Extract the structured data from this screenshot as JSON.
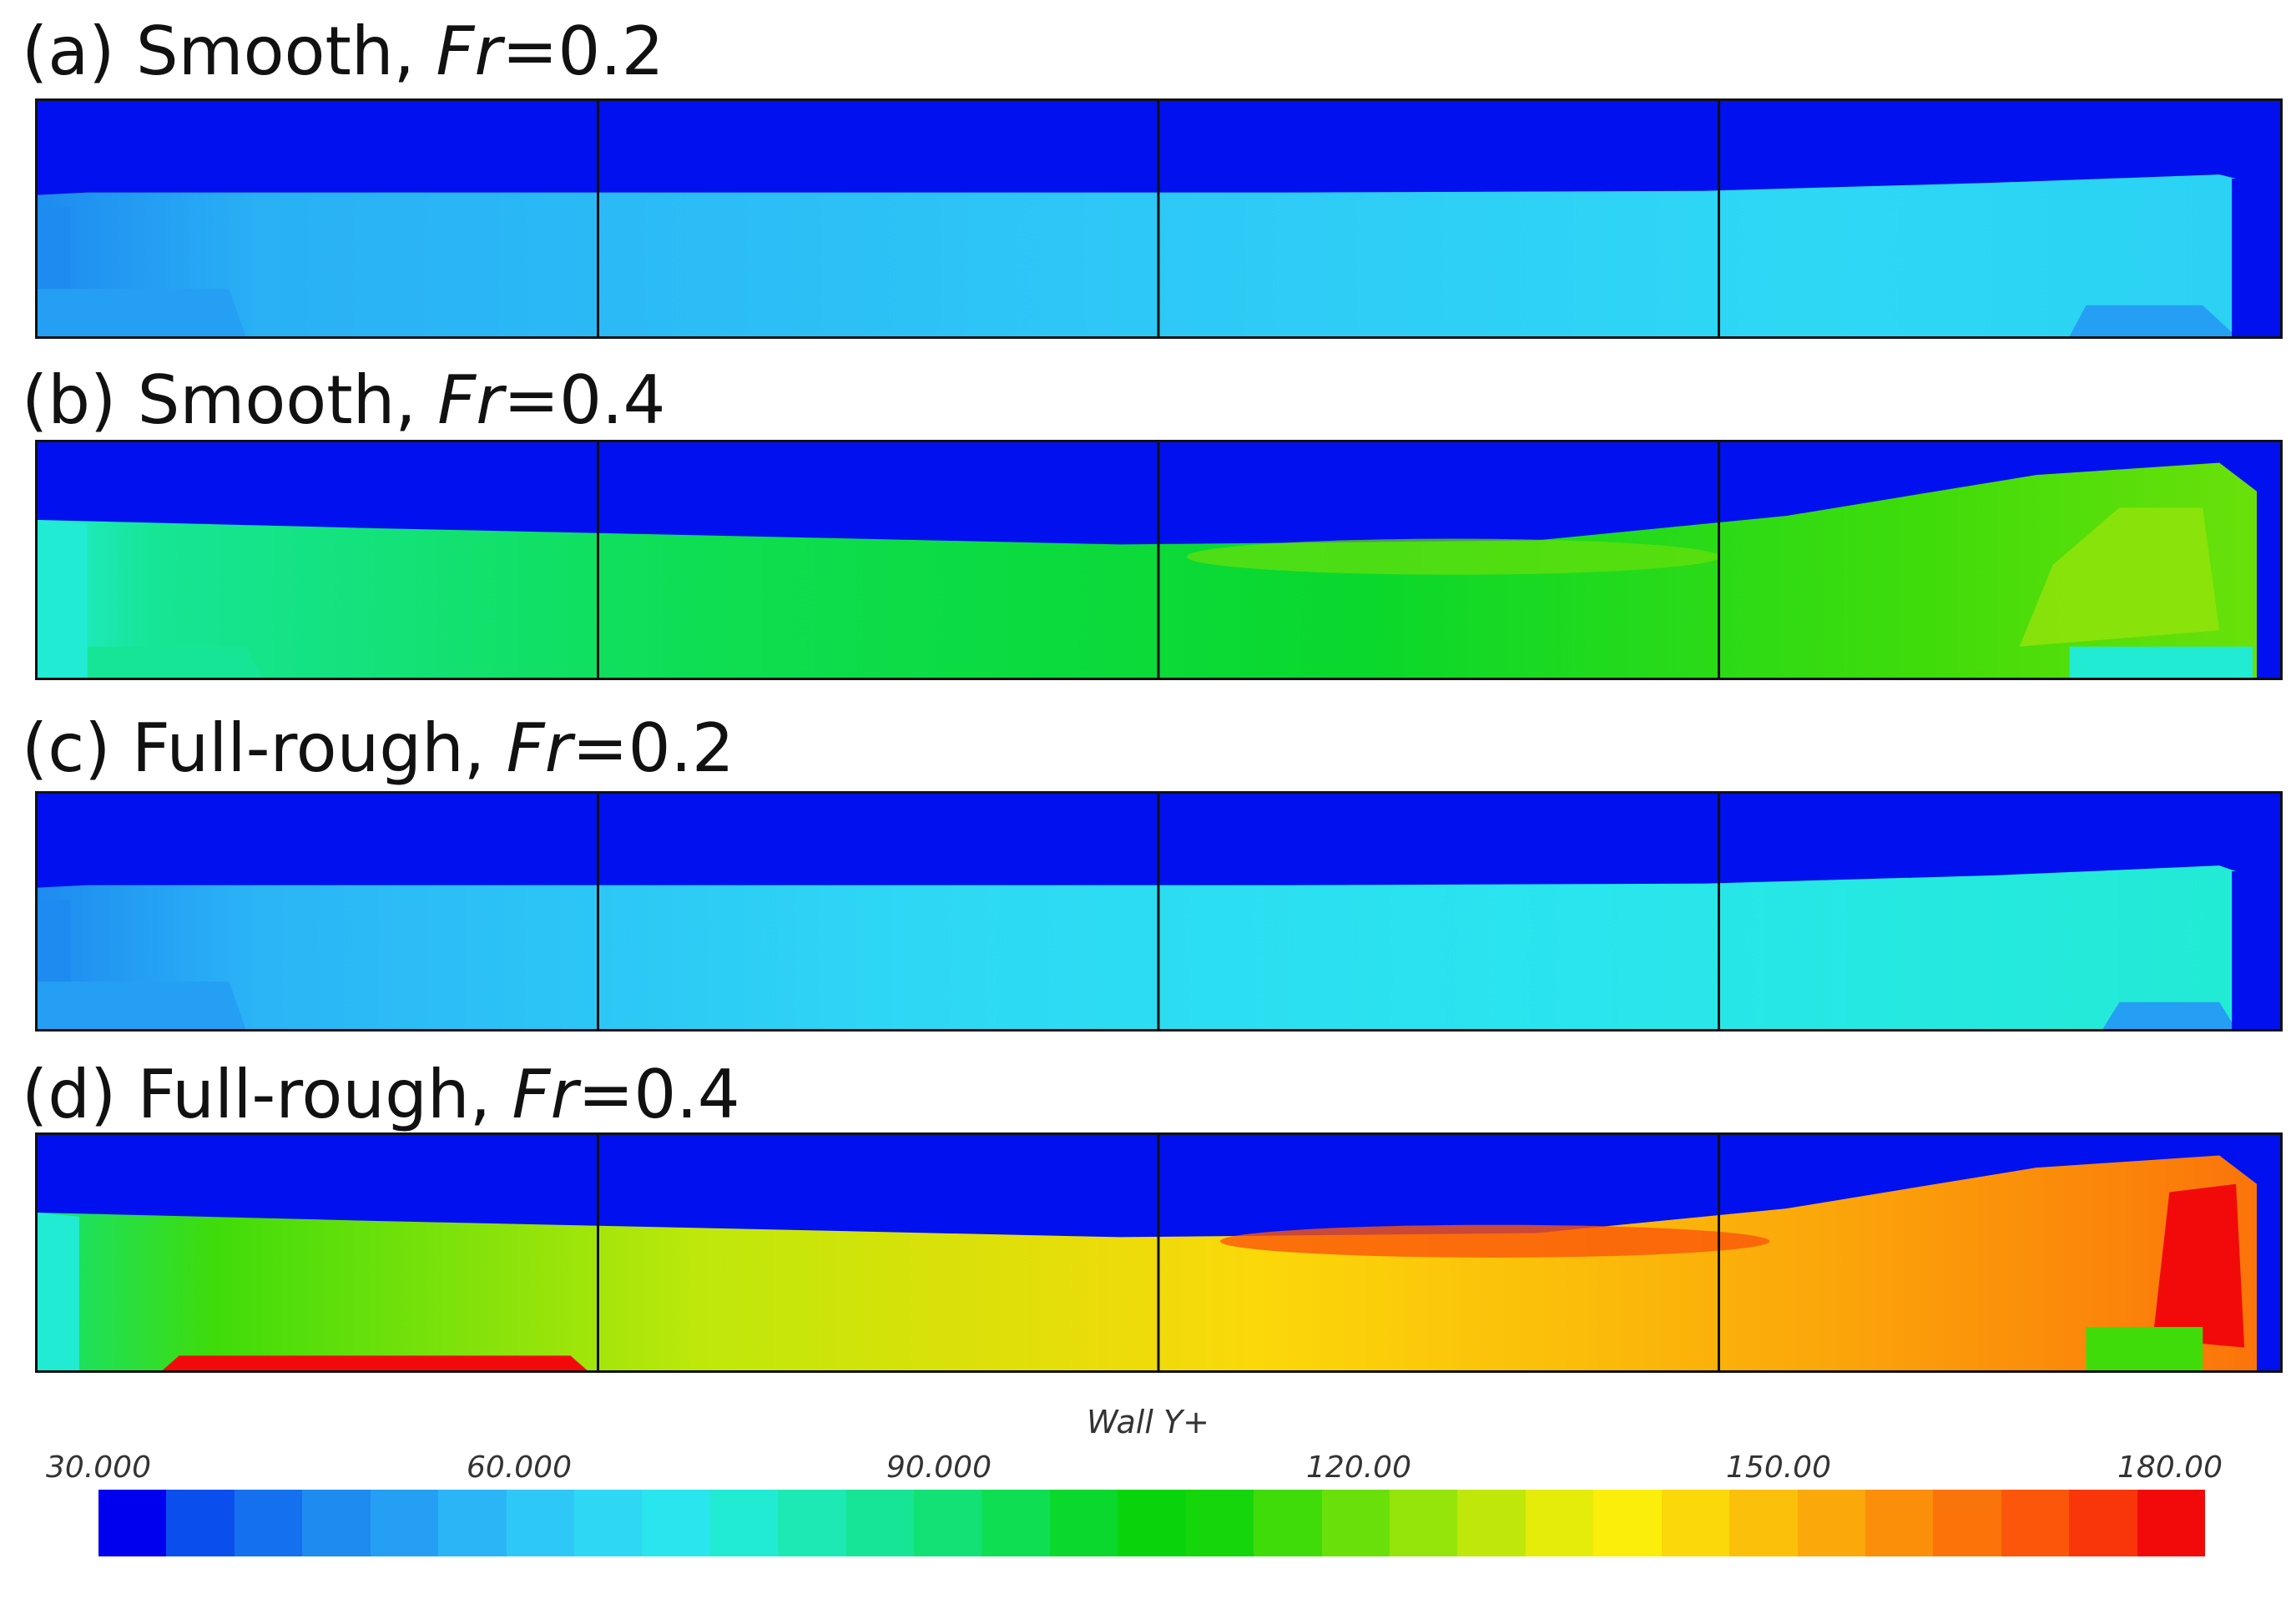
{
  "panels": [
    {
      "letter": "(a) Smooth, ",
      "fr": "Fr",
      "eq": "=0.2",
      "level": "low"
    },
    {
      "letter": "(b) Smooth, ",
      "fr": "Fr",
      "eq": "=0.4",
      "level": "mid"
    },
    {
      "letter": "(c) Full-rough, ",
      "fr": "Fr",
      "eq": "=0.2",
      "level": "low2"
    },
    {
      "letter": "(d) Full-rough, ",
      "fr": "Fr",
      "eq": "=0.4",
      "level": "high"
    }
  ],
  "colorbar": {
    "title": "Wall Y+",
    "ticks": [
      "30.000",
      "60.000",
      "90.000",
      "120.00",
      "150.00",
      "180.00"
    ],
    "tick_values": [
      30,
      60,
      90,
      120,
      150,
      180
    ],
    "range": [
      30,
      180
    ],
    "colors": [
      "#0000ee",
      "#0a4fee",
      "#1470ee",
      "#1e8bf0",
      "#259ff4",
      "#2bb4f6",
      "#2ec8f7",
      "#2ed8f5",
      "#29e5ee",
      "#22ebd4",
      "#1de9b5",
      "#17e596",
      "#12e275",
      "#0ede52",
      "#0ad82c",
      "#08d40b",
      "#14d60b",
      "#3fdc0a",
      "#6ae00a",
      "#95e40a",
      "#bfe80a",
      "#e6ec0a",
      "#fbee0a",
      "#fbd80a",
      "#fbc10a",
      "#fba80a",
      "#fb8f0a",
      "#fb740a",
      "#fb560a",
      "#f8360a",
      "#f20a0a"
    ]
  }
}
